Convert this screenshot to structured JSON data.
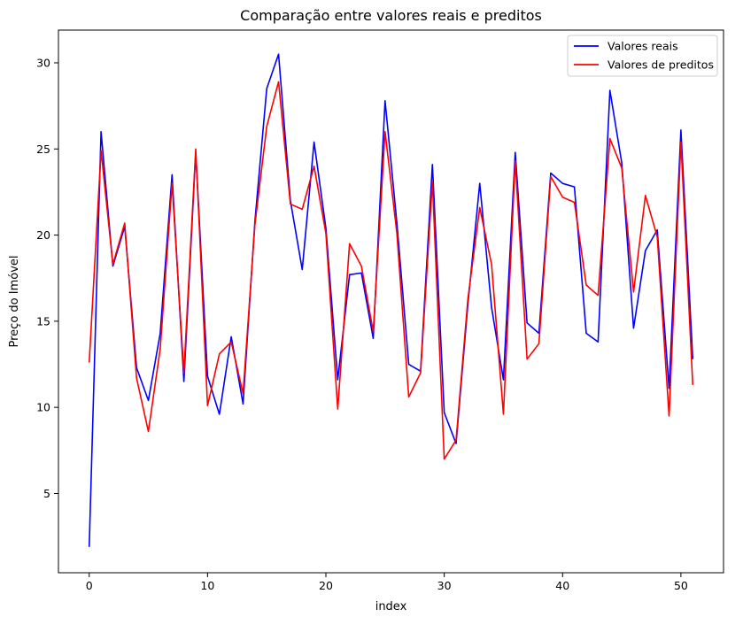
{
  "chart_data": {
    "type": "line",
    "title": "Comparação entre valores reais e preditos",
    "xlabel": "index",
    "ylabel": "Preço do Imóvel",
    "xlim": [
      -2.6,
      53.6
    ],
    "ylim": [
      0.4,
      31.9
    ],
    "xticks": [
      0,
      10,
      20,
      30,
      40,
      50
    ],
    "yticks": [
      5,
      10,
      15,
      20,
      25,
      30
    ],
    "xtick_labels": [
      "0",
      "10",
      "20",
      "30",
      "40",
      "50"
    ],
    "ytick_labels": [
      "5",
      "10",
      "15",
      "20",
      "25",
      "30"
    ],
    "grid": false,
    "legend_position": "top-right",
    "x": [
      0,
      1,
      2,
      3,
      4,
      5,
      6,
      7,
      8,
      9,
      10,
      11,
      12,
      13,
      14,
      15,
      16,
      17,
      18,
      19,
      20,
      21,
      22,
      23,
      24,
      25,
      26,
      27,
      28,
      29,
      30,
      31,
      32,
      33,
      34,
      35,
      36,
      37,
      38,
      39,
      40,
      41,
      42,
      43,
      44,
      45,
      46,
      47,
      48,
      49,
      50,
      51
    ],
    "series": [
      {
        "name": "Valores reais",
        "color": "#0000ff",
        "values": [
          1.9,
          26.0,
          18.2,
          20.5,
          12.3,
          10.4,
          14.3,
          23.5,
          11.5,
          24.8,
          11.8,
          9.6,
          14.1,
          10.2,
          20.8,
          28.5,
          30.5,
          22.0,
          18.0,
          25.4,
          20.4,
          11.6,
          17.7,
          17.8,
          14.0,
          27.8,
          20.7,
          12.5,
          12.1,
          24.1,
          9.7,
          7.9,
          16.0,
          23.0,
          15.8,
          11.6,
          24.8,
          14.9,
          14.3,
          23.6,
          23.0,
          22.8,
          14.3,
          13.8,
          28.4,
          24.2,
          14.6,
          19.1,
          20.3,
          11.1,
          26.1,
          12.8
        ]
      },
      {
        "name": "Valores de preditos",
        "color": "#ff0000",
        "values": [
          12.6,
          24.9,
          18.3,
          20.7,
          11.7,
          8.6,
          13.4,
          23.0,
          12.0,
          25.0,
          10.1,
          13.1,
          13.8,
          10.8,
          20.6,
          26.3,
          28.9,
          21.8,
          21.5,
          24.0,
          20.1,
          9.9,
          19.5,
          18.2,
          14.4,
          26.0,
          20.1,
          10.6,
          12.0,
          23.1,
          7.0,
          8.1,
          16.3,
          21.6,
          18.3,
          9.6,
          24.3,
          12.8,
          13.7,
          23.4,
          22.2,
          21.9,
          17.1,
          16.5,
          25.6,
          23.9,
          16.7,
          22.3,
          19.9,
          9.5,
          25.4,
          11.3
        ]
      }
    ]
  }
}
